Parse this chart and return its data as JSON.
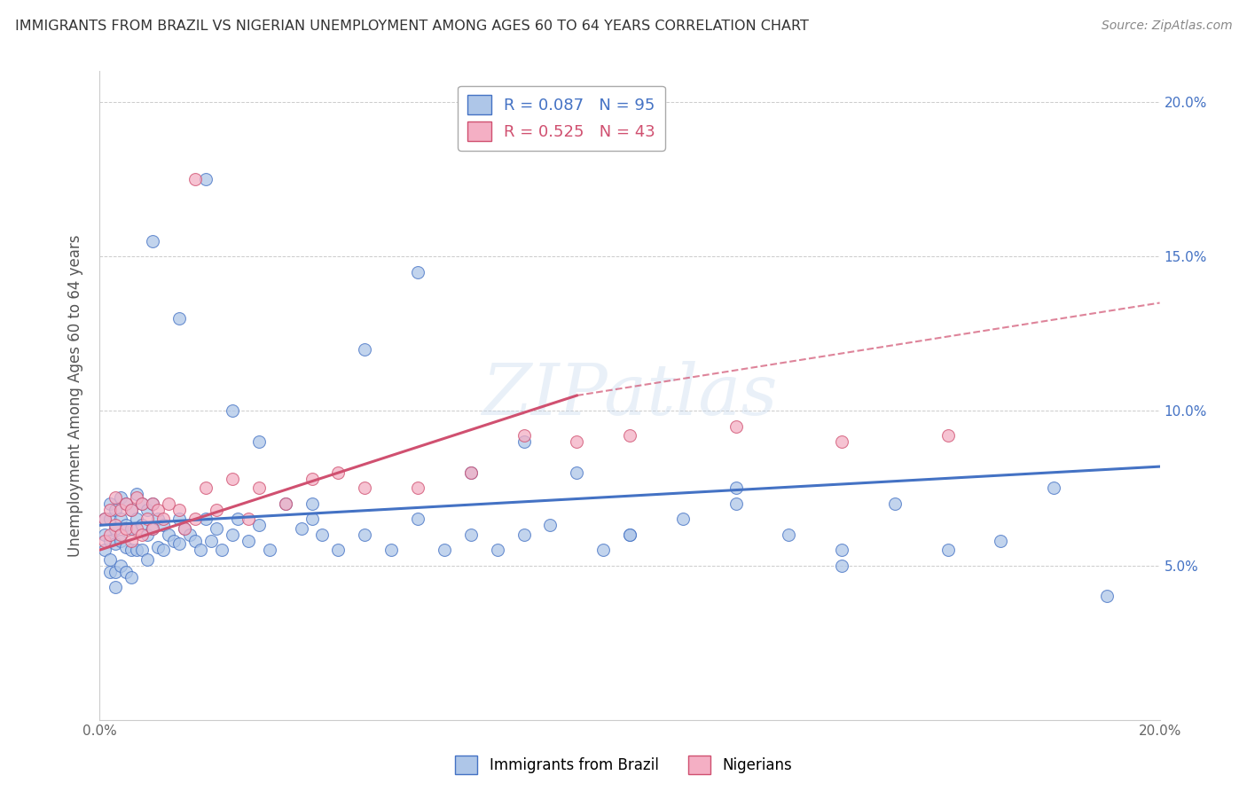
{
  "title": "IMMIGRANTS FROM BRAZIL VS NIGERIAN UNEMPLOYMENT AMONG AGES 60 TO 64 YEARS CORRELATION CHART",
  "source": "Source: ZipAtlas.com",
  "ylabel": "Unemployment Among Ages 60 to 64 years",
  "xlim": [
    0.0,
    0.2
  ],
  "ylim": [
    0.0,
    0.21
  ],
  "xtick_positions": [
    0.0,
    0.04,
    0.08,
    0.12,
    0.16,
    0.2
  ],
  "xtick_labels": [
    "0.0%",
    "",
    "",
    "",
    "",
    "20.0%"
  ],
  "ytick_positions": [
    0.0,
    0.05,
    0.1,
    0.15,
    0.2
  ],
  "ytick_labels_right": [
    "",
    "5.0%",
    "10.0%",
    "15.0%",
    "20.0%"
  ],
  "brazil_R": 0.087,
  "brazil_N": 95,
  "nigeria_R": 0.525,
  "nigeria_N": 43,
  "brazil_color": "#aec6e8",
  "brazil_line_color": "#4472c4",
  "nigeria_color": "#f4afc4",
  "nigeria_line_color": "#d05070",
  "watermark": "ZIPatlas",
  "legend_brazil_label": "Immigrants from Brazil",
  "legend_nigeria_label": "Nigerians",
  "background_color": "#ffffff",
  "grid_color": "#cccccc",
  "brazil_x": [
    0.001,
    0.001,
    0.001,
    0.002,
    0.002,
    0.002,
    0.002,
    0.002,
    0.003,
    0.003,
    0.003,
    0.003,
    0.003,
    0.004,
    0.004,
    0.004,
    0.004,
    0.005,
    0.005,
    0.005,
    0.005,
    0.006,
    0.006,
    0.006,
    0.006,
    0.007,
    0.007,
    0.007,
    0.008,
    0.008,
    0.008,
    0.009,
    0.009,
    0.009,
    0.01,
    0.01,
    0.011,
    0.011,
    0.012,
    0.012,
    0.013,
    0.014,
    0.015,
    0.015,
    0.016,
    0.017,
    0.018,
    0.019,
    0.02,
    0.021,
    0.022,
    0.023,
    0.025,
    0.026,
    0.028,
    0.03,
    0.032,
    0.035,
    0.038,
    0.04,
    0.042,
    0.045,
    0.05,
    0.055,
    0.06,
    0.065,
    0.07,
    0.075,
    0.08,
    0.085,
    0.09,
    0.095,
    0.1,
    0.11,
    0.12,
    0.13,
    0.14,
    0.15,
    0.16,
    0.17,
    0.18,
    0.19,
    0.01,
    0.015,
    0.02,
    0.025,
    0.03,
    0.04,
    0.05,
    0.06,
    0.07,
    0.08,
    0.1,
    0.12,
    0.14
  ],
  "brazil_y": [
    0.065,
    0.06,
    0.055,
    0.07,
    0.065,
    0.058,
    0.052,
    0.048,
    0.068,
    0.062,
    0.057,
    0.048,
    0.043,
    0.072,
    0.065,
    0.058,
    0.05,
    0.07,
    0.063,
    0.056,
    0.048,
    0.068,
    0.062,
    0.055,
    0.046,
    0.073,
    0.065,
    0.055,
    0.07,
    0.063,
    0.055,
    0.068,
    0.06,
    0.052,
    0.07,
    0.062,
    0.065,
    0.056,
    0.063,
    0.055,
    0.06,
    0.058,
    0.065,
    0.057,
    0.062,
    0.06,
    0.058,
    0.055,
    0.065,
    0.058,
    0.062,
    0.055,
    0.06,
    0.065,
    0.058,
    0.063,
    0.055,
    0.07,
    0.062,
    0.065,
    0.06,
    0.055,
    0.06,
    0.055,
    0.065,
    0.055,
    0.06,
    0.055,
    0.06,
    0.063,
    0.08,
    0.055,
    0.06,
    0.065,
    0.075,
    0.06,
    0.055,
    0.07,
    0.055,
    0.058,
    0.075,
    0.04,
    0.155,
    0.13,
    0.175,
    0.1,
    0.09,
    0.07,
    0.12,
    0.145,
    0.08,
    0.09,
    0.06,
    0.07,
    0.05
  ],
  "nigeria_x": [
    0.001,
    0.001,
    0.002,
    0.002,
    0.003,
    0.003,
    0.004,
    0.004,
    0.005,
    0.005,
    0.006,
    0.006,
    0.007,
    0.007,
    0.008,
    0.008,
    0.009,
    0.01,
    0.01,
    0.011,
    0.012,
    0.013,
    0.015,
    0.016,
    0.018,
    0.02,
    0.022,
    0.025,
    0.028,
    0.03,
    0.035,
    0.04,
    0.045,
    0.05,
    0.06,
    0.07,
    0.08,
    0.09,
    0.1,
    0.12,
    0.14,
    0.16,
    0.018
  ],
  "nigeria_y": [
    0.065,
    0.058,
    0.068,
    0.06,
    0.072,
    0.063,
    0.068,
    0.06,
    0.07,
    0.062,
    0.068,
    0.058,
    0.072,
    0.062,
    0.07,
    0.06,
    0.065,
    0.07,
    0.062,
    0.068,
    0.065,
    0.07,
    0.068,
    0.062,
    0.065,
    0.075,
    0.068,
    0.078,
    0.065,
    0.075,
    0.07,
    0.078,
    0.08,
    0.075,
    0.075,
    0.08,
    0.092,
    0.09,
    0.092,
    0.095,
    0.09,
    0.092,
    0.175
  ]
}
